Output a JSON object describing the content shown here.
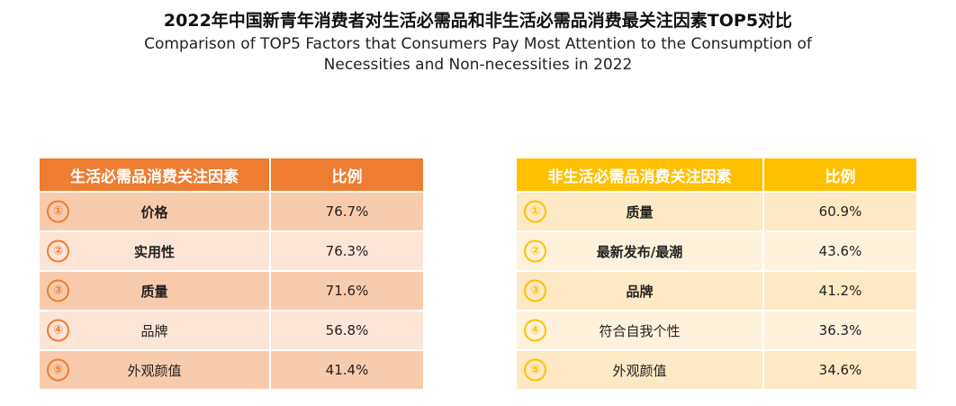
{
  "title_cn": "2022年中国新青年消费者对生活必需品和非生活必需品消费最关注因素TOP5对比",
  "title_en_line1": "Comparison of TOP5 Factors that Consumers Pay Most Attention to the Consumption of",
  "title_en_line2": "Necessities and Non-necessities in 2022",
  "colors": {
    "left_header": "#ee7d31",
    "right_header": "#ffc000",
    "left_row_dark": "#f8cbad",
    "left_row_light": "#fce4d6",
    "right_row_dark": "#fde9c4",
    "right_row_light": "#fff2dc"
  },
  "chart_data": [
    {
      "type": "table",
      "title": "生活必需品消费关注因素",
      "columns": [
        "生活必需品消费关注因素",
        "比例"
      ],
      "rows": [
        {
          "rank": "①",
          "factor": "价格",
          "value": "76.7%",
          "bold": true
        },
        {
          "rank": "②",
          "factor": "实用性",
          "value": "76.3%",
          "bold": true
        },
        {
          "rank": "③",
          "factor": "质量",
          "value": "71.6%",
          "bold": true
        },
        {
          "rank": "④",
          "factor": "品牌",
          "value": "56.8%",
          "bold": false
        },
        {
          "rank": "⑤",
          "factor": "外观颜值",
          "value": "41.4%",
          "bold": false
        }
      ]
    },
    {
      "type": "table",
      "title": "非生活必需品消费关注因素",
      "columns": [
        "非生活必需品消费关注因素",
        "比例"
      ],
      "rows": [
        {
          "rank": "①",
          "factor": "质量",
          "value": "60.9%",
          "bold": true
        },
        {
          "rank": "②",
          "factor": "最新发布/最潮",
          "value": "43.6%",
          "bold": true
        },
        {
          "rank": "③",
          "factor": "品牌",
          "value": "41.2%",
          "bold": true
        },
        {
          "rank": "④",
          "factor": "符合自我个性",
          "value": "36.3%",
          "bold": false
        },
        {
          "rank": "⑤",
          "factor": "外观颜值",
          "value": "34.6%",
          "bold": false
        }
      ]
    }
  ]
}
